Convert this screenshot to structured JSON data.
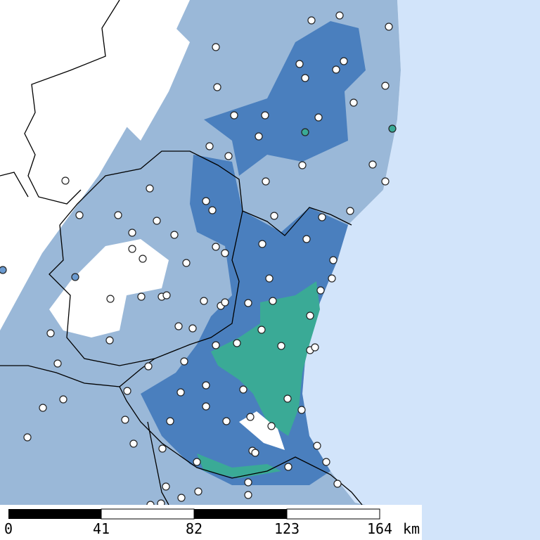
{
  "scale_bar": {
    "labels": [
      "0",
      "41",
      "82",
      "123",
      "164"
    ],
    "unit": "km"
  }
}
